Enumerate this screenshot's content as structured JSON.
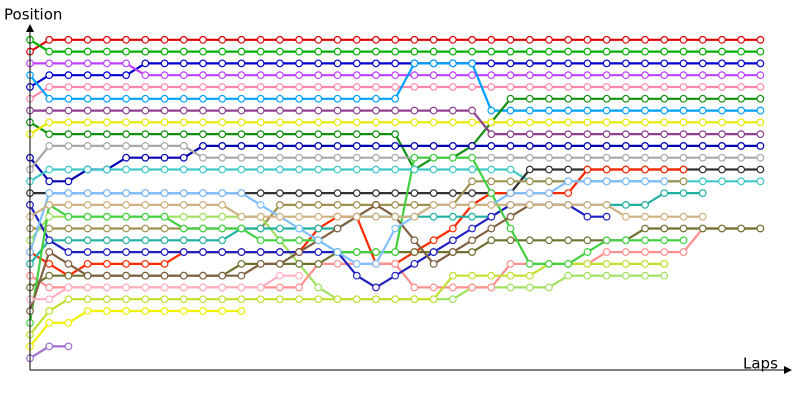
{
  "chart_data": {
    "type": "line",
    "y_title": "Position",
    "x_title": "Laps",
    "x": [
      0,
      1,
      2,
      3,
      4,
      5,
      6,
      7,
      8,
      9,
      10,
      11,
      12,
      13,
      14,
      15,
      16,
      17,
      18,
      19,
      20,
      21,
      22,
      23,
      24,
      25,
      26,
      27,
      28,
      29,
      30,
      31,
      32,
      33,
      34,
      35,
      36,
      37,
      38
    ],
    "xlim": [
      0,
      38.5
    ],
    "xticks": [
      1,
      2,
      3,
      4,
      5,
      6,
      7,
      8,
      9,
      10,
      11,
      12,
      13,
      14,
      15,
      16,
      17,
      18,
      19,
      20,
      21,
      22,
      23,
      24,
      25,
      26,
      27,
      28,
      29,
      30,
      31,
      32,
      33,
      34,
      35,
      36,
      37,
      38
    ],
    "ylim": [
      29,
      0
    ],
    "yticks": [
      1,
      2,
      3,
      4,
      5,
      6,
      7,
      8,
      9,
      10,
      11,
      12,
      13,
      14,
      15,
      16,
      17,
      18,
      19,
      20,
      21,
      22,
      23,
      24,
      25,
      26,
      27,
      28
    ],
    "grid": true,
    "series": [
      {
        "color": "#e00000",
        "values": [
          2,
          1,
          1,
          1,
          1,
          1,
          1,
          1,
          1,
          1,
          1,
          1,
          1,
          1,
          1,
          1,
          1,
          1,
          1,
          1,
          1,
          1,
          1,
          1,
          1,
          1,
          1,
          1,
          1,
          1,
          1,
          1,
          1,
          1,
          1,
          1,
          1,
          1,
          1
        ]
      },
      {
        "color": "#00b000",
        "values": [
          1,
          2,
          2,
          2,
          2,
          2,
          2,
          2,
          2,
          2,
          2,
          2,
          2,
          2,
          2,
          2,
          2,
          2,
          2,
          2,
          2,
          2,
          2,
          2,
          2,
          2,
          2,
          2,
          2,
          2,
          2,
          2,
          2,
          2,
          2,
          2,
          2,
          2,
          2
        ]
      },
      {
        "color": "#0000d0",
        "values": [
          5,
          4,
          4,
          4,
          4,
          4,
          3,
          3,
          3,
          3,
          3,
          3,
          3,
          3,
          3,
          3,
          3,
          3,
          3,
          3,
          3,
          3,
          3,
          3,
          3,
          3,
          3,
          3,
          3,
          3,
          3,
          3,
          3,
          3,
          3,
          3,
          3,
          3,
          3
        ]
      },
      {
        "color": "#c040ff",
        "values": [
          3,
          3,
          3,
          3,
          3,
          3,
          4,
          4,
          4,
          4,
          4,
          4,
          4,
          4,
          4,
          4,
          4,
          4,
          4,
          4,
          4,
          4,
          4,
          4,
          4,
          4,
          4,
          4,
          4,
          4,
          4,
          4,
          4,
          4,
          4,
          4,
          4,
          4,
          4
        ]
      },
      {
        "color": "#ff88aa",
        "values": [
          6,
          5,
          5,
          5,
          5,
          5,
          5,
          5,
          5,
          5,
          5,
          5,
          5,
          5,
          5,
          5,
          5,
          5,
          5,
          5,
          5,
          5,
          5,
          5,
          5,
          5,
          5,
          5,
          5,
          5,
          5,
          5,
          5,
          5,
          5,
          5,
          5,
          5,
          5
        ]
      },
      {
        "color": "#00a0ff",
        "values": [
          4,
          6,
          6,
          6,
          6,
          6,
          6,
          6,
          6,
          6,
          6,
          6,
          6,
          6,
          6,
          6,
          6,
          6,
          6,
          6,
          3,
          3,
          3,
          3,
          7,
          7,
          7,
          7,
          7,
          7,
          7,
          7,
          7,
          7,
          7,
          7,
          7,
          7,
          7
        ]
      },
      {
        "color": "#109010",
        "values": [
          8,
          9,
          9,
          9,
          9,
          9,
          9,
          9,
          9,
          9,
          9,
          9,
          9,
          9,
          9,
          9,
          9,
          9,
          9,
          9,
          12,
          11,
          11,
          10,
          8,
          6,
          6,
          6,
          6,
          6,
          6,
          6,
          6,
          6,
          6,
          6,
          6,
          6,
          6
        ]
      },
      {
        "color": "#e8e800",
        "values": [
          9,
          8,
          8,
          8,
          8,
          8,
          8,
          8,
          8,
          8,
          8,
          8,
          8,
          8,
          8,
          8,
          8,
          8,
          8,
          8,
          8,
          8,
          8,
          8,
          8,
          8,
          8,
          8,
          8,
          8,
          8,
          8,
          8,
          8,
          8,
          8,
          8,
          8,
          8
        ]
      },
      {
        "color": "#904090",
        "values": [
          7,
          7,
          7,
          7,
          7,
          7,
          7,
          7,
          7,
          7,
          7,
          7,
          7,
          7,
          7,
          7,
          7,
          7,
          7,
          7,
          7,
          7,
          7,
          7,
          9,
          9,
          9,
          9,
          9,
          9,
          9,
          9,
          9,
          9,
          9,
          9,
          9,
          9,
          9
        ]
      },
      {
        "color": "#0000b0",
        "values": [
          11,
          13,
          13,
          12,
          12,
          11,
          11,
          11,
          11,
          10,
          10,
          10,
          10,
          10,
          10,
          10,
          10,
          10,
          10,
          10,
          10,
          10,
          10,
          10,
          10,
          10,
          10,
          10,
          10,
          10,
          10,
          10,
          10,
          10,
          10,
          10,
          10,
          10,
          10
        ]
      },
      {
        "color": "#a8a8a8",
        "values": [
          12,
          10,
          10,
          10,
          10,
          10,
          10,
          10,
          10,
          11,
          11,
          11,
          11,
          11,
          11,
          11,
          11,
          11,
          11,
          11,
          11,
          11,
          11,
          11,
          11,
          11,
          11,
          11,
          11,
          11,
          11,
          11,
          11,
          11,
          11,
          11,
          11,
          11,
          11
        ]
      },
      {
        "color": "#40c8c8",
        "values": [
          13,
          12,
          12,
          12,
          12,
          12,
          12,
          12,
          12,
          12,
          12,
          12,
          12,
          12,
          12,
          12,
          12,
          12,
          12,
          12,
          12,
          12,
          12,
          12,
          12,
          12,
          13,
          13,
          13,
          13,
          13,
          13,
          13,
          13,
          13,
          13,
          13,
          13,
          13
        ]
      },
      {
        "color": "#303030",
        "values": [
          14,
          14,
          14,
          14,
          14,
          14,
          14,
          14,
          14,
          14,
          14,
          14,
          14,
          14,
          14,
          14,
          14,
          14,
          14,
          14,
          14,
          14,
          14,
          14,
          14,
          14,
          12,
          12,
          12,
          12,
          12,
          12,
          12,
          12,
          12,
          12,
          12,
          12,
          12
        ]
      },
      {
        "color": "#ff2a00",
        "values": [
          19,
          20,
          21,
          20,
          20,
          20,
          20,
          20,
          19,
          19,
          19,
          19,
          19,
          19,
          19,
          17,
          16,
          16,
          20,
          20,
          19,
          18,
          17,
          15,
          14,
          14,
          14,
          14,
          14,
          12,
          12,
          12,
          12,
          12,
          12,
          null,
          null,
          null,
          null
        ]
      },
      {
        "color": "#a09050",
        "values": [
          17,
          17,
          17,
          17,
          17,
          17,
          17,
          17,
          17,
          17,
          17,
          17,
          17,
          15,
          15,
          15,
          15,
          15,
          15,
          15,
          15,
          15,
          15,
          13,
          13,
          13,
          13,
          13,
          13,
          13,
          13,
          13,
          13,
          13,
          13,
          null,
          null,
          null,
          null
        ]
      },
      {
        "color": "#a0e060",
        "values": [
          18,
          16,
          16,
          16,
          16,
          16,
          16,
          16,
          16,
          16,
          16,
          16,
          16,
          18,
          20,
          22,
          23,
          23,
          23,
          23,
          23,
          23,
          23,
          22,
          22,
          22,
          22,
          22,
          21,
          21,
          21,
          21,
          21,
          21,
          null,
          null,
          null,
          null,
          null
        ]
      },
      {
        "color": "#20b0a0",
        "values": [
          20,
          18,
          18,
          18,
          18,
          18,
          18,
          18,
          18,
          18,
          18,
          17,
          17,
          17,
          17,
          17,
          17,
          16,
          16,
          16,
          16,
          16,
          16,
          16,
          16,
          15,
          15,
          15,
          15,
          15,
          15,
          15,
          15,
          14,
          14,
          14,
          null,
          null,
          null
        ]
      },
      {
        "color": "#ff9090",
        "values": [
          21,
          22,
          22,
          22,
          22,
          22,
          22,
          22,
          22,
          22,
          22,
          22,
          22,
          22,
          22,
          20,
          20,
          20,
          20,
          20,
          22,
          22,
          22,
          22,
          22,
          20,
          20,
          20,
          20,
          20,
          19,
          19,
          19,
          19,
          19,
          17,
          17,
          17,
          17
        ]
      },
      {
        "color": "#707030",
        "values": [
          22,
          21,
          21,
          21,
          21,
          21,
          21,
          21,
          21,
          21,
          21,
          20,
          20,
          20,
          20,
          20,
          19,
          19,
          19,
          19,
          19,
          19,
          19,
          19,
          18,
          18,
          18,
          18,
          18,
          18,
          18,
          18,
          17,
          17,
          17,
          17,
          17,
          17,
          17
        ]
      },
      {
        "color": "#f0f000",
        "values": [
          27,
          25,
          25,
          24,
          24,
          24,
          24,
          24,
          24,
          24,
          24,
          24,
          null,
          null,
          null,
          null,
          null,
          null,
          null,
          null,
          null,
          null,
          null,
          null,
          null,
          null,
          null,
          null,
          null,
          null,
          null,
          null,
          null,
          null,
          null,
          null,
          null,
          null,
          null
        ]
      },
      {
        "color": "#c0e030",
        "values": [
          26,
          24,
          23,
          23,
          23,
          23,
          23,
          23,
          23,
          23,
          23,
          23,
          23,
          23,
          23,
          23,
          23,
          23,
          23,
          23,
          23,
          23,
          21,
          21,
          21,
          21,
          21,
          20,
          20,
          20,
          20,
          20,
          20,
          20,
          null,
          null,
          null,
          null,
          null
        ]
      },
      {
        "color": "#2020c0",
        "values": [
          15,
          18,
          19,
          19,
          19,
          19,
          19,
          19,
          19,
          19,
          19,
          19,
          19,
          19,
          19,
          19,
          19,
          21,
          22,
          21,
          20,
          19,
          18,
          17,
          16,
          15,
          15,
          15,
          15,
          16,
          16,
          null,
          null,
          null,
          null,
          null,
          null,
          null,
          null
        ]
      },
      {
        "color": "#40d040",
        "values": [
          25,
          15,
          16,
          16,
          16,
          16,
          16,
          16,
          17,
          17,
          17,
          17,
          18,
          18,
          18,
          18,
          19,
          19,
          19,
          19,
          11,
          11,
          11,
          11,
          14,
          17,
          20,
          20,
          20,
          19,
          18,
          18,
          18,
          18,
          18,
          null,
          null,
          null,
          null
        ]
      },
      {
        "color": "#806040",
        "values": [
          24,
          19,
          20,
          21,
          21,
          21,
          21,
          21,
          21,
          21,
          21,
          21,
          20,
          20,
          19,
          18,
          17,
          16,
          15,
          16,
          18,
          20,
          19,
          18,
          17,
          16,
          15,
          null,
          null,
          null,
          null,
          null,
          null,
          null,
          null,
          null,
          null,
          null,
          null
        ]
      },
      {
        "color": "#ffb0c0",
        "values": [
          23,
          23,
          22,
          22,
          22,
          22,
          22,
          22,
          22,
          22,
          22,
          22,
          22,
          21,
          21,
          null,
          null,
          null,
          null,
          null,
          null,
          null,
          null,
          null,
          null,
          null,
          null,
          null,
          null,
          null,
          null,
          null,
          null,
          null,
          null,
          null,
          null,
          null,
          null
        ]
      },
      {
        "color": "#a070d0",
        "values": [
          28,
          27,
          27,
          null,
          null,
          null,
          null,
          null,
          null,
          null,
          null,
          null,
          null,
          null,
          null,
          null,
          null,
          null,
          null,
          null,
          null,
          null,
          null,
          null,
          null,
          null,
          null,
          null,
          null,
          null,
          null,
          null,
          null,
          null,
          null,
          null,
          null,
          null,
          null
        ]
      },
      {
        "color": "#80c0ff",
        "values": [
          19,
          14,
          14,
          14,
          14,
          14,
          14,
          14,
          14,
          14,
          14,
          14,
          15,
          16,
          17,
          18,
          19,
          20,
          20,
          17,
          16,
          15,
          15,
          15,
          15,
          14,
          14,
          14,
          13,
          13,
          13,
          13,
          13,
          13,
          null,
          null,
          null,
          null,
          null
        ]
      },
      {
        "color": "#d0b080",
        "values": [
          16,
          15,
          15,
          15,
          15,
          15,
          15,
          15,
          15,
          15,
          15,
          16,
          16,
          16,
          16,
          16,
          16,
          16,
          16,
          16,
          16,
          15,
          15,
          15,
          15,
          15,
          15,
          15,
          15,
          15,
          15,
          16,
          16,
          16,
          16,
          16,
          null,
          null,
          null
        ]
      }
    ]
  }
}
